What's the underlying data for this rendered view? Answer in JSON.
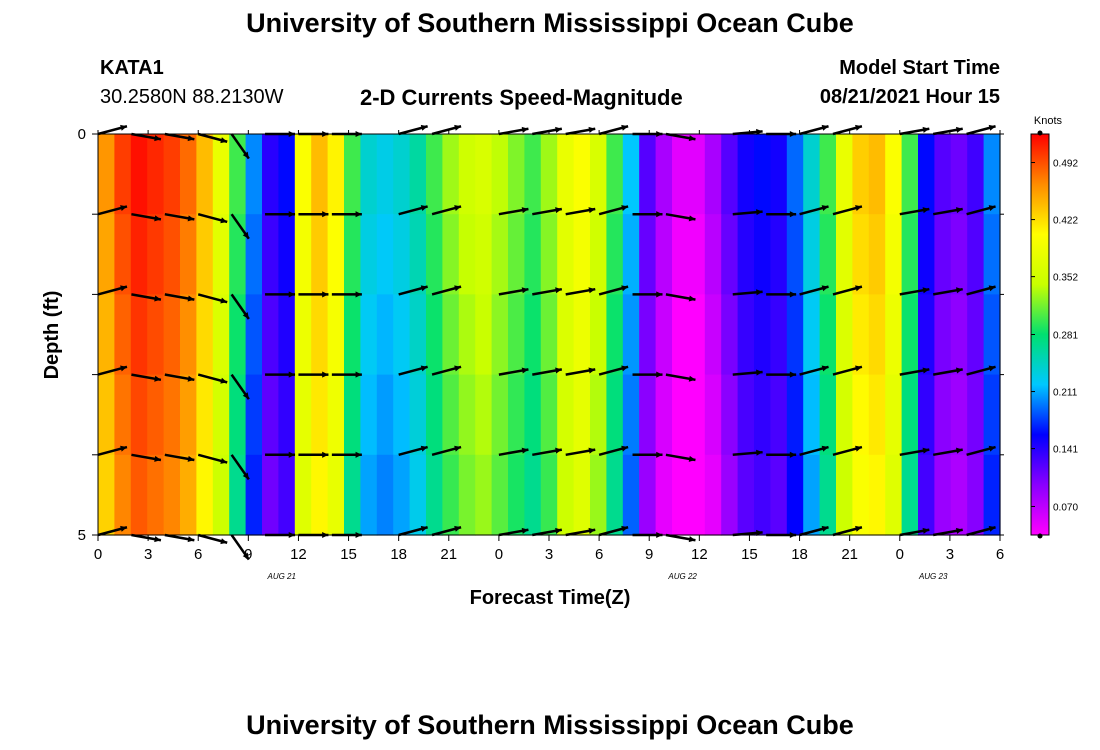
{
  "header": {
    "title": "University of Southern Mississippi Ocean Cube",
    "station_id": "KATA1",
    "coordinates": "30.2580N  88.2130W",
    "chart_title": "2-D Currents Speed-Magnitude",
    "model_start_label": "Model Start Time",
    "model_start_value": "08/21/2021 Hour 15"
  },
  "footer": {
    "title": "University of Southern Mississippi Ocean Cube"
  },
  "chart_data": {
    "type": "heatmap",
    "title": "2-D Currents Speed-Magnitude",
    "xlabel": "Forecast Time(Z)",
    "ylabel": "Depth (ft)",
    "x_tick_labels": [
      "0",
      "3",
      "6",
      "9",
      "12",
      "15",
      "18",
      "21",
      "0",
      "3",
      "6",
      "9",
      "12",
      "15",
      "18",
      "21",
      "0",
      "3",
      "6"
    ],
    "date_labels": [
      {
        "label": "AUG  21",
        "hour": 11
      },
      {
        "label": "AUG  22",
        "hour": 35
      },
      {
        "label": "AUG  23",
        "hour": 50
      }
    ],
    "x_range": [
      0,
      54
    ],
    "y_tick_labels": [
      "0",
      "5"
    ],
    "y_range": [
      0,
      5
    ],
    "depth_rows": 5,
    "colorbar": {
      "unit": "Knots",
      "min": 0.035,
      "max": 0.527,
      "tick_labels": [
        "0.492",
        "0.422",
        "0.352",
        "0.281",
        "0.211",
        "0.141",
        "0.070"
      ],
      "tick_values": [
        0.492,
        0.422,
        0.352,
        0.281,
        0.211,
        0.141,
        0.07
      ],
      "colors": [
        "#ff00ff",
        "#8a00ff",
        "#0000ff",
        "#00c8ff",
        "#00e070",
        "#c8ff00",
        "#ffff00",
        "#ff8c00",
        "#ff0000"
      ]
    },
    "speed_series_knots": [
      0.46,
      0.5,
      0.52,
      0.51,
      0.5,
      0.48,
      0.44,
      0.38,
      0.3,
      0.2,
      0.14,
      0.16,
      0.4,
      0.44,
      0.41,
      0.3,
      0.24,
      0.23,
      0.24,
      0.26,
      0.3,
      0.33,
      0.35,
      0.36,
      0.34,
      0.32,
      0.3,
      0.33,
      0.38,
      0.4,
      0.36,
      0.3,
      0.22,
      0.12,
      0.08,
      0.05,
      0.05,
      0.08,
      0.12,
      0.15,
      0.16,
      0.15,
      0.19,
      0.24,
      0.3,
      0.38,
      0.43,
      0.44,
      0.4,
      0.3,
      0.16,
      0.12,
      0.11,
      0.13,
      0.2
    ],
    "vector_hours": [
      0,
      2,
      4,
      6,
      8,
      10,
      12,
      14,
      18,
      20,
      24,
      26,
      28,
      30,
      32,
      34,
      38,
      40,
      42,
      44,
      48,
      50,
      52
    ],
    "vector_angles_deg": [
      15,
      -10,
      -10,
      -15,
      -55,
      0,
      0,
      0,
      15,
      15,
      10,
      10,
      10,
      15,
      0,
      -10,
      5,
      0,
      15,
      15,
      10,
      10,
      15
    ]
  }
}
